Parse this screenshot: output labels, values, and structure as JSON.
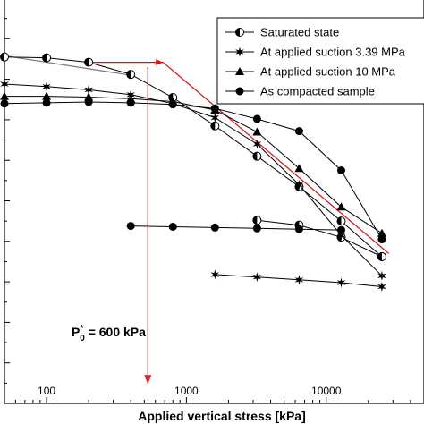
{
  "chart_data": {
    "type": "line",
    "x_scale": "log",
    "xlim": [
      50,
      50000
    ],
    "ylim": [
      0,
      1
    ],
    "xlabel": "Applied vertical stress [kPa]",
    "ylabel": "",
    "x_ticks": [
      100,
      1000,
      10000
    ],
    "x_tick_labels": [
      "100",
      "1000",
      "10000"
    ],
    "legend_placement": "top-right",
    "series": [
      {
        "name": "Saturated state",
        "marker": "half-filled-circle",
        "segments": [
          {
            "x": [
              50,
              100,
              200,
              400,
              800,
              1600,
              3200,
              6400,
              12800,
              25000
            ],
            "y": [
              0.855,
              0.853,
              0.842,
              0.812,
              0.755,
              0.685,
              0.61,
              0.535,
              0.45,
              0.362
            ]
          },
          {
            "x": [
              25000,
              12800,
              6400,
              3200
            ],
            "y": [
              0.362,
              0.41,
              0.44,
              0.452
            ]
          }
        ]
      },
      {
        "name": "At applied suction 3.39 MPa",
        "marker": "star",
        "segments": [
          {
            "x": [
              50,
              100,
              200,
              400,
              800,
              1600,
              3200,
              6400,
              12800,
              25000
            ],
            "y": [
              0.788,
              0.782,
              0.774,
              0.762,
              0.74,
              0.705,
              0.64,
              0.54,
              0.415,
              0.315
            ]
          },
          {
            "x": [
              25000,
              12800,
              6400,
              3200,
              1600
            ],
            "y": [
              0.288,
              0.298,
              0.305,
              0.312,
              0.318
            ]
          }
        ]
      },
      {
        "name": "At applied suction 10 MPa",
        "marker": "triangle",
        "segments": [
          {
            "x": [
              50,
              100,
              200,
              400,
              800,
              1600,
              3200,
              6400,
              12800,
              25000
            ],
            "y": [
              0.758,
              0.758,
              0.756,
              0.752,
              0.745,
              0.724,
              0.67,
              0.58,
              0.485,
              0.42
            ]
          }
        ]
      },
      {
        "name": "As compacted sample",
        "marker": "filled-circle",
        "segments": [
          {
            "x": [
              50,
              100,
              200,
              400,
              800,
              1600,
              3200,
              6400,
              12800,
              25000
            ],
            "y": [
              0.74,
              0.742,
              0.744,
              0.742,
              0.738,
              0.728,
              0.702,
              0.672,
              0.575,
              0.405
            ]
          },
          {
            "x": [
              400,
              800,
              1600,
              3200,
              6400,
              12800
            ],
            "y": [
              0.438,
              0.436,
              0.434,
              0.432,
              0.43,
              0.428
            ]
          }
        ]
      }
    ],
    "construction_lines": [
      {
        "x": [
          200,
          680
        ],
        "y": [
          0.842,
          0.842
        ],
        "color": "#ff0000"
      },
      {
        "x": [
          30,
          400
        ],
        "y": [
          0.87,
          0.81
        ],
        "color": "#808080"
      },
      {
        "x": [
          680,
          28000
        ],
        "y": [
          0.842,
          0.37
        ],
        "color": "#cc2222"
      },
      {
        "x": [
          530,
          530
        ],
        "y": [
          0.83,
          0.048
        ],
        "color": "#cc2222"
      }
    ],
    "annotation": "P*0 = 600 kPa",
    "annotation_parts": {
      "p": "P",
      "sup": "*",
      "sub": "0",
      "rest": " = 600 kPa"
    }
  }
}
